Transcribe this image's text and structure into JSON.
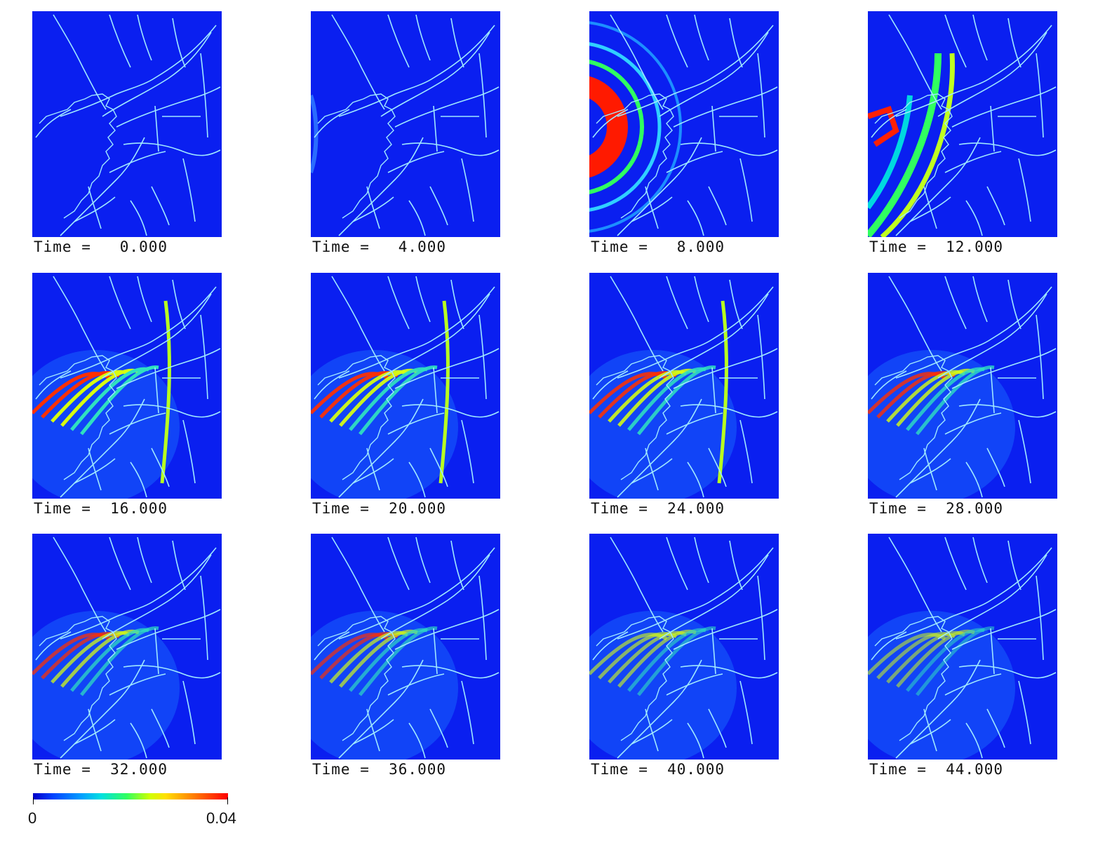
{
  "panels": [
    {
      "time_label": "Time =   0.000",
      "wave": 0
    },
    {
      "time_label": "Time =   4.000",
      "wave": 1
    },
    {
      "time_label": "Time =   8.000",
      "wave": 2
    },
    {
      "time_label": "Time =  12.000",
      "wave": 3
    },
    {
      "time_label": "Time =  16.000",
      "wave": 4
    },
    {
      "time_label": "Time =  20.000",
      "wave": 5
    },
    {
      "time_label": "Time =  24.000",
      "wave": 6
    },
    {
      "time_label": "Time =  28.000",
      "wave": 7
    },
    {
      "time_label": "Time =  32.000",
      "wave": 8
    },
    {
      "time_label": "Time =  36.000",
      "wave": 9
    },
    {
      "time_label": "Time =  40.000",
      "wave": 10
    },
    {
      "time_label": "Time =  44.000",
      "wave": 11
    }
  ],
  "colorbar": {
    "min_label": "0",
    "max_label": "0.04"
  },
  "colors": {
    "background_field": "#0a1ff0",
    "rivers": "#9fe8ff",
    "wave_low": "#00e0e0",
    "wave_mid": "#30ff60",
    "wave_high": "#ff0000"
  }
}
